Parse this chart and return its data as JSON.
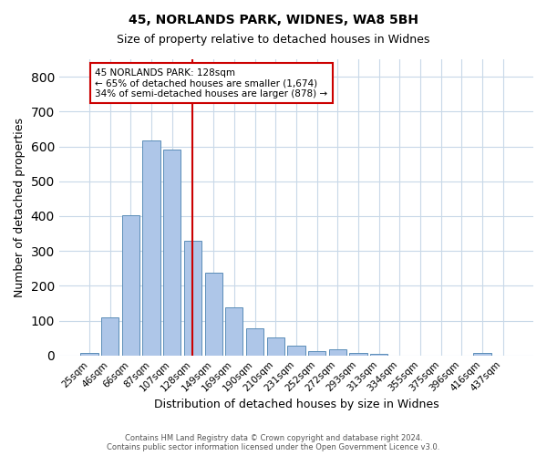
{
  "title1": "45, NORLANDS PARK, WIDNES, WA8 5BH",
  "title2": "Size of property relative to detached houses in Widnes",
  "xlabel": "Distribution of detached houses by size in Widnes",
  "ylabel": "Number of detached properties",
  "bar_labels": [
    "25sqm",
    "46sqm",
    "66sqm",
    "87sqm",
    "107sqm",
    "128sqm",
    "149sqm",
    "169sqm",
    "190sqm",
    "210sqm",
    "231sqm",
    "252sqm",
    "272sqm",
    "293sqm",
    "313sqm",
    "334sqm",
    "355sqm",
    "375sqm",
    "396sqm",
    "416sqm",
    "437sqm"
  ],
  "bar_values": [
    8,
    108,
    403,
    617,
    592,
    330,
    238,
    137,
    78,
    52,
    28,
    13,
    18,
    7,
    4,
    0,
    0,
    0,
    0,
    8,
    0
  ],
  "bar_color": "#aec6e8",
  "bar_edge_color": "#5b8db8",
  "vline_x": 5,
  "vline_color": "#cc0000",
  "annotation_title": "45 NORLANDS PARK: 128sqm",
  "annotation_line1": "← 65% of detached houses are smaller (1,674)",
  "annotation_line2": "34% of semi-detached houses are larger (878) →",
  "annotation_box_color": "#cc0000",
  "ylim": [
    0,
    850
  ],
  "yticks": [
    0,
    100,
    200,
    300,
    400,
    500,
    600,
    700,
    800
  ],
  "footer1": "Contains HM Land Registry data © Crown copyright and database right 2024.",
  "footer2": "Contains public sector information licensed under the Open Government Licence v3.0.",
  "bg_color": "#ffffff",
  "grid_color": "#c8d8e8"
}
